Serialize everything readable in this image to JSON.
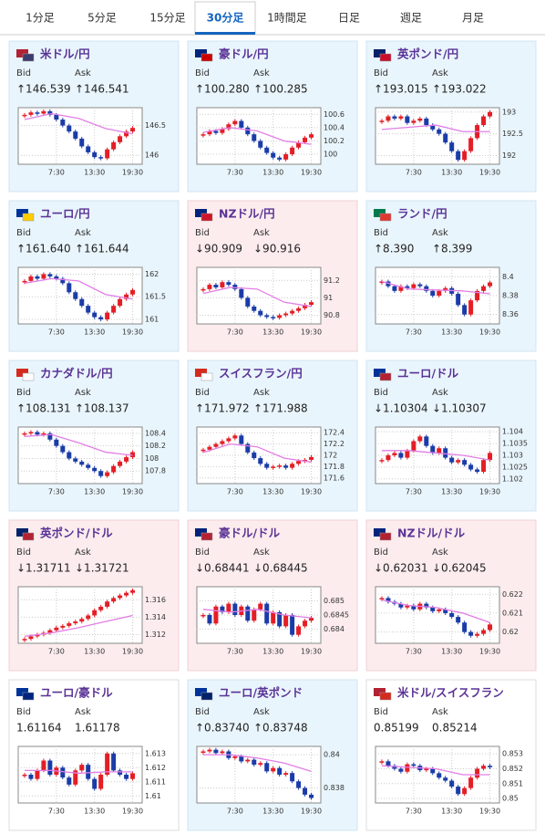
{
  "tabs": [
    "1分足",
    "5分足",
    "15分足",
    "30分足",
    "1時間足",
    "日足",
    "週足",
    "月足"
  ],
  "active_tab": 3,
  "labels": {
    "bid": "Bid",
    "ask": "Ask"
  },
  "xticks": [
    {
      "value": 5,
      "label": "7:30"
    },
    {
      "value": 11,
      "label": "13:30"
    },
    {
      "value": 17,
      "label": "19:30"
    }
  ],
  "xlim": [
    -1,
    18.5
  ],
  "cards": [
    {
      "name": "米ドル/円",
      "bid": "↑146.539",
      "ask": "↑146.541",
      "trend": "up",
      "chart": {
        "type": "candlestick",
        "ylim": [
          145.85,
          146.8
        ],
        "yticks": [
          146,
          146.5
        ],
        "values": [
          146.68,
          146.72,
          146.7,
          146.74,
          146.68,
          146.6,
          146.5,
          146.4,
          146.28,
          146.15,
          146.05,
          145.97,
          145.95,
          146.1,
          146.22,
          146.32,
          146.4,
          146.46
        ],
        "ma": [
          146.6,
          146.7,
          146.62,
          146.45,
          146.36
        ]
      }
    },
    {
      "name": "豪ドル/円",
      "bid": "↑100.280",
      "ask": "↑100.285",
      "trend": "up",
      "chart": {
        "type": "candlestick",
        "ylim": [
          99.85,
          100.7
        ],
        "yticks": [
          100,
          100.2,
          100.4,
          100.6
        ],
        "values": [
          100.3,
          100.35,
          100.32,
          100.38,
          100.45,
          100.5,
          100.4,
          100.3,
          100.2,
          100.1,
          100.02,
          99.95,
          99.92,
          100.0,
          100.1,
          100.18,
          100.25,
          100.3
        ],
        "ma": [
          100.33,
          100.4,
          100.35,
          100.2,
          100.15
        ]
      }
    },
    {
      "name": "英ポンド/円",
      "bid": "↑193.015",
      "ask": "↑193.022",
      "trend": "up",
      "chart": {
        "type": "candlestick",
        "ylim": [
          191.8,
          193.1
        ],
        "yticks": [
          192,
          192.5,
          193
        ],
        "values": [
          192.8,
          192.9,
          192.85,
          192.9,
          192.75,
          192.8,
          192.85,
          192.7,
          192.6,
          192.5,
          192.3,
          192.1,
          191.9,
          192.1,
          192.4,
          192.7,
          192.9,
          193.0
        ],
        "ma": [
          192.6,
          192.65,
          192.7,
          192.55,
          192.55
        ]
      }
    },
    {
      "name": "ユーロ/円",
      "bid": "↑161.640",
      "ask": "↑161.644",
      "trend": "up",
      "chart": {
        "type": "candlestick",
        "ylim": [
          160.9,
          162.15
        ],
        "yticks": [
          161,
          161.5,
          162
        ],
        "values": [
          161.85,
          161.95,
          161.9,
          162.0,
          161.95,
          161.9,
          161.8,
          161.6,
          161.45,
          161.3,
          161.15,
          161.05,
          161.0,
          161.15,
          161.3,
          161.45,
          161.55,
          161.65
        ],
        "ma": [
          161.8,
          161.9,
          161.85,
          161.55,
          161.45
        ]
      }
    },
    {
      "name": "NZドル/円",
      "bid": "↓90.909",
      "ask": "↓90.916",
      "trend": "down",
      "chart": {
        "type": "candlestick",
        "ylim": [
          90.7,
          91.35
        ],
        "yticks": [
          90.8,
          91,
          91.2
        ],
        "values": [
          91.1,
          91.15,
          91.12,
          91.18,
          91.15,
          91.1,
          91.0,
          90.9,
          90.85,
          90.8,
          90.78,
          90.77,
          90.8,
          90.82,
          90.85,
          90.88,
          90.92,
          90.95
        ],
        "ma": [
          91.05,
          91.12,
          91.1,
          90.95,
          90.9
        ]
      }
    },
    {
      "name": "ランド/円",
      "bid": "↑8.390",
      "ask": "↑8.399",
      "trend": "up",
      "chart": {
        "type": "candlestick",
        "ylim": [
          8.35,
          8.41
        ],
        "yticks": [
          8.36,
          8.38,
          8.4
        ],
        "values": [
          8.395,
          8.39,
          8.385,
          8.39,
          8.388,
          8.392,
          8.39,
          8.385,
          8.38,
          8.385,
          8.388,
          8.382,
          8.37,
          8.36,
          8.375,
          8.385,
          8.39,
          8.394
        ],
        "ma": [
          8.395,
          8.387,
          8.386,
          8.385,
          8.382
        ]
      }
    },
    {
      "name": "カナダドル/円",
      "bid": "↑108.131",
      "ask": "↑108.137",
      "trend": "up",
      "chart": {
        "type": "candlestick",
        "ylim": [
          107.6,
          108.5
        ],
        "yticks": [
          107.8,
          108,
          108.2,
          108.4
        ],
        "values": [
          108.4,
          108.42,
          108.38,
          108.4,
          108.3,
          108.2,
          108.1,
          108.0,
          107.95,
          107.9,
          107.85,
          107.8,
          107.72,
          107.78,
          107.88,
          107.95,
          108.02,
          108.1
        ],
        "ma": [
          108.35,
          108.38,
          108.25,
          108.1,
          108.05
        ]
      }
    },
    {
      "name": "スイスフラン/円",
      "bid": "↑171.972",
      "ask": "↑171.988",
      "trend": "up",
      "chart": {
        "type": "candlestick",
        "ylim": [
          171.5,
          172.5
        ],
        "yticks": [
          171.6,
          171.8,
          172,
          172.2,
          172.4
        ],
        "values": [
          172.1,
          172.15,
          172.2,
          172.25,
          172.3,
          172.35,
          172.2,
          172.05,
          171.95,
          171.85,
          171.78,
          171.8,
          171.82,
          171.78,
          171.85,
          171.9,
          171.92,
          171.97
        ],
        "ma": [
          172.05,
          172.2,
          172.15,
          171.95,
          171.88
        ]
      }
    },
    {
      "name": "ユーロ/ドル",
      "bid": "↓1.10304",
      "ask": "↓1.10307",
      "trend": "up",
      "chart": {
        "type": "candlestick",
        "ylim": [
          1.1018,
          1.1042
        ],
        "yticks": [
          1.102,
          1.1025,
          1.103,
          1.1035,
          1.104
        ],
        "values": [
          1.1028,
          1.103,
          1.1031,
          1.1029,
          1.1032,
          1.1036,
          1.1038,
          1.1034,
          1.1031,
          1.1033,
          1.1029,
          1.1027,
          1.1028,
          1.1026,
          1.1024,
          1.1023,
          1.1028,
          1.1031
        ],
        "ma": [
          1.1032,
          1.1032,
          1.1031,
          1.103,
          1.1028
        ]
      }
    },
    {
      "name": "英ポンド/ドル",
      "bid": "↓1.31711",
      "ask": "↓1.31721",
      "trend": "down",
      "chart": {
        "type": "candlestick",
        "ylim": [
          1.311,
          1.3175
        ],
        "yticks": [
          1.312,
          1.314,
          1.316
        ],
        "values": [
          1.3115,
          1.3118,
          1.312,
          1.3122,
          1.3125,
          1.3128,
          1.313,
          1.3133,
          1.3135,
          1.3138,
          1.3142,
          1.3148,
          1.3152,
          1.3158,
          1.3162,
          1.3165,
          1.3168,
          1.3171
        ],
        "ma": [
          1.3118,
          1.3122,
          1.3128,
          1.3135,
          1.3142
        ]
      }
    },
    {
      "name": "豪ドル/ドル",
      "bid": "↓0.68441",
      "ask": "↓0.68445",
      "trend": "down",
      "chart": {
        "type": "candlestick",
        "ylim": [
          0.6835,
          0.6855
        ],
        "yticks": [
          0.684,
          0.6845,
          0.685
        ],
        "values": [
          0.6845,
          0.6842,
          0.6848,
          0.6846,
          0.6849,
          0.6845,
          0.6848,
          0.6843,
          0.6847,
          0.6849,
          0.6842,
          0.6846,
          0.6841,
          0.6845,
          0.6838,
          0.6841,
          0.6843,
          0.6844
        ],
        "ma": [
          0.6847,
          0.6846,
          0.6847,
          0.6845,
          0.6844
        ]
      }
    },
    {
      "name": "NZドル/ドル",
      "bid": "↓0.62031",
      "ask": "↓0.62045",
      "trend": "down",
      "chart": {
        "type": "candlestick",
        "ylim": [
          0.6194,
          0.6224
        ],
        "yticks": [
          0.62,
          0.621,
          0.622
        ],
        "values": [
          0.6218,
          0.6216,
          0.6215,
          0.6213,
          0.6214,
          0.6212,
          0.6215,
          0.6213,
          0.6211,
          0.6212,
          0.621,
          0.6208,
          0.6205,
          0.62,
          0.6198,
          0.6199,
          0.6201,
          0.6204
        ],
        "ma": [
          0.6217,
          0.6214,
          0.6213,
          0.621,
          0.6205
        ]
      }
    },
    {
      "name": "ユーロ/豪ドル",
      "bid": "1.61164",
      "ask": "1.61178",
      "trend": "flat",
      "chart": {
        "type": "candlestick",
        "ylim": [
          1.6095,
          1.6135
        ],
        "yticks": [
          1.61,
          1.611,
          1.612,
          1.613
        ],
        "values": [
          1.6115,
          1.6112,
          1.6118,
          1.6125,
          1.6115,
          1.612,
          1.6113,
          1.6108,
          1.6118,
          1.6122,
          1.6112,
          1.6105,
          1.6115,
          1.613,
          1.6118,
          1.6115,
          1.6112,
          1.6116
        ],
        "ma": [
          1.6118,
          1.6118,
          1.6116,
          1.6117,
          1.6117
        ]
      }
    },
    {
      "name": "ユーロ/英ポンド",
      "bid": "↑0.83740",
      "ask": "↑0.83748",
      "trend": "up",
      "chart": {
        "type": "candlestick",
        "ylim": [
          0.8371,
          0.8405
        ],
        "yticks": [
          0.838,
          0.84
        ],
        "values": [
          0.8402,
          0.8403,
          0.8401,
          0.8402,
          0.8398,
          0.8399,
          0.8396,
          0.8397,
          0.8394,
          0.8395,
          0.839,
          0.8392,
          0.8388,
          0.8389,
          0.8384,
          0.838,
          0.8376,
          0.8374
        ],
        "ma": [
          0.84,
          0.84,
          0.8398,
          0.8395,
          0.839
        ]
      }
    },
    {
      "name": "米ドル/スイスフラン",
      "bid": "0.85199",
      "ask": "0.85214",
      "trend": "flat",
      "chart": {
        "type": "candlestick",
        "ylim": [
          0.8497,
          0.8535
        ],
        "yticks": [
          0.85,
          0.851,
          0.852,
          0.853
        ],
        "values": [
          0.8525,
          0.8522,
          0.852,
          0.8518,
          0.8523,
          0.8522,
          0.8519,
          0.852,
          0.8517,
          0.8514,
          0.8512,
          0.8508,
          0.8503,
          0.8507,
          0.8514,
          0.852,
          0.8522,
          0.8521
        ],
        "ma": [
          0.8522,
          0.8521,
          0.852,
          0.8516,
          0.8516
        ]
      }
    }
  ]
}
